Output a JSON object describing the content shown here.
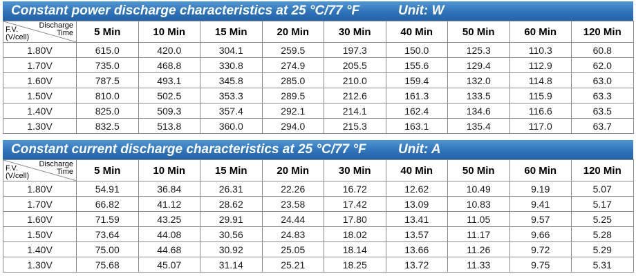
{
  "power": {
    "title": "Constant power discharge characteristics at 25 °C/77 °F",
    "unit": "Unit: W",
    "corner": {
      "top1": "Discharge",
      "top2": "Time",
      "bottom1": "F.V.",
      "bottom2": "(V/cell)"
    },
    "columns": [
      "5 Min",
      "10 Min",
      "15 Min",
      "20 Min",
      "30 Min",
      "40 Min",
      "50 Min",
      "60 Min",
      "120 Min"
    ],
    "rows": [
      {
        "fv": "1.80V",
        "values": [
          "615.0",
          "420.0",
          "304.1",
          "259.5",
          "197.3",
          "150.0",
          "125.3",
          "110.3",
          "60.8"
        ]
      },
      {
        "fv": "1.70V",
        "values": [
          "735.0",
          "468.8",
          "330.8",
          "274.9",
          "205.5",
          "155.6",
          "129.4",
          "112.9",
          "62.0"
        ]
      },
      {
        "fv": "1.60V",
        "values": [
          "787.5",
          "493.1",
          "345.8",
          "285.0",
          "210.0",
          "159.4",
          "132.0",
          "114.8",
          "63.0"
        ]
      },
      {
        "fv": "1.50V",
        "values": [
          "810.0",
          "502.5",
          "353.3",
          "289.5",
          "212.6",
          "161.3",
          "133.5",
          "115.9",
          "63.3"
        ]
      },
      {
        "fv": "1.40V",
        "values": [
          "825.0",
          "509.3",
          "357.4",
          "292.1",
          "214.1",
          "162.4",
          "134.6",
          "116.6",
          "63.5"
        ]
      },
      {
        "fv": "1.30V",
        "values": [
          "832.5",
          "513.8",
          "360.0",
          "294.0",
          "215.3",
          "163.1",
          "135.4",
          "117.0",
          "63.7"
        ]
      }
    ]
  },
  "current": {
    "title": "Constant current discharge characteristics at 25 °C/77 °F",
    "unit": "Unit: A",
    "corner": {
      "top1": "Discharge",
      "top2": "Time",
      "bottom1": "F.V.",
      "bottom2": "(V/cell)"
    },
    "columns": [
      "5 Min",
      "10 Min",
      "15 Min",
      "20 Min",
      "30 Min",
      "40 Min",
      "50 Min",
      "60 Min",
      "120 Min"
    ],
    "rows": [
      {
        "fv": "1.80V",
        "values": [
          "54.91",
          "36.84",
          "26.31",
          "22.26",
          "16.72",
          "12.62",
          "10.49",
          "9.19",
          "5.07"
        ]
      },
      {
        "fv": "1.70V",
        "values": [
          "66.82",
          "41.12",
          "28.62",
          "23.58",
          "17.42",
          "13.09",
          "10.83",
          "9.41",
          "5.17"
        ]
      },
      {
        "fv": "1.60V",
        "values": [
          "71.59",
          "43.25",
          "29.91",
          "24.44",
          "17.80",
          "13.41",
          "11.05",
          "9.57",
          "5.25"
        ]
      },
      {
        "fv": "1.50V",
        "values": [
          "73.64",
          "44.08",
          "30.56",
          "24.83",
          "18.02",
          "13.57",
          "11.17",
          "9.66",
          "5.28"
        ]
      },
      {
        "fv": "1.40V",
        "values": [
          "75.00",
          "44.68",
          "30.92",
          "25.05",
          "18.14",
          "13.66",
          "11.26",
          "9.72",
          "5.29"
        ]
      },
      {
        "fv": "1.30V",
        "values": [
          "75.68",
          "45.07",
          "31.14",
          "25.21",
          "18.25",
          "13.72",
          "11.33",
          "9.75",
          "5.31"
        ]
      }
    ]
  }
}
